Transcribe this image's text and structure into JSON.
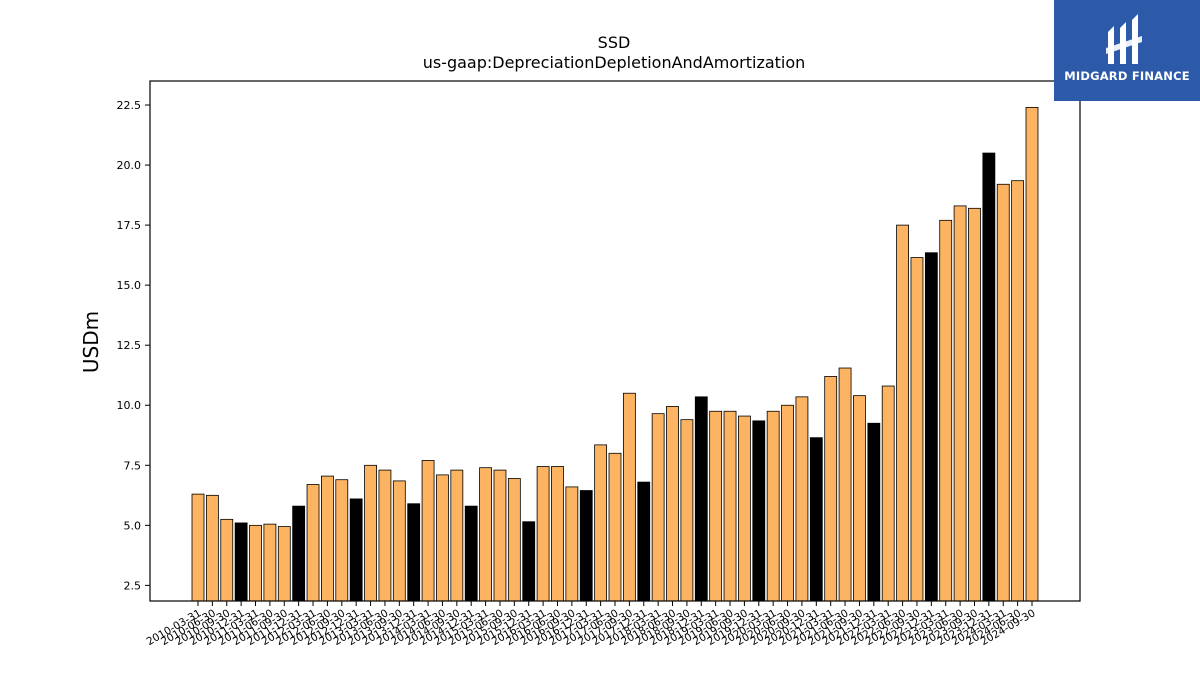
{
  "chart_data": {
    "type": "bar",
    "title": "SSD",
    "subtitle": "us-gaap:DepreciationDepletionAndAmortization",
    "xlabel": "",
    "ylabel": "USDm",
    "ylim": [
      1.85,
      23.5
    ],
    "yticks": [
      2.5,
      5.0,
      7.5,
      10.0,
      12.5,
      15.0,
      17.5,
      20.0,
      22.5
    ],
    "grid": false,
    "categories": [
      "2010-03-31",
      "2010-06-30",
      "2010-09-30",
      "2010-12-31",
      "2011-03-31",
      "2011-06-30",
      "2011-09-30",
      "2011-12-31",
      "2012-03-31",
      "2012-06-30",
      "2012-09-30",
      "2012-12-31",
      "2013-03-31",
      "2013-06-30",
      "2013-09-30",
      "2013-12-31",
      "2014-03-31",
      "2014-06-30",
      "2014-09-30",
      "2014-12-31",
      "2015-03-31",
      "2015-06-30",
      "2015-09-30",
      "2015-12-31",
      "2016-03-31",
      "2016-06-30",
      "2016-09-30",
      "2016-12-31",
      "2017-03-31",
      "2017-06-30",
      "2017-09-30",
      "2017-12-31",
      "2018-03-31",
      "2018-06-30",
      "2018-09-30",
      "2018-12-31",
      "2019-03-31",
      "2019-06-30",
      "2019-09-30",
      "2019-12-31",
      "2020-03-31",
      "2020-06-30",
      "2020-09-30",
      "2020-12-31",
      "2021-03-31",
      "2021-06-30",
      "2021-09-30",
      "2021-12-31",
      "2022-03-31",
      "2022-06-30",
      "2022-09-30",
      "2022-12-31",
      "2023-03-31",
      "2023-06-30",
      "2023-09-30",
      "2023-12-31",
      "2024-03-31",
      "2024-06-30",
      "2024-09-30"
    ],
    "values": [
      6.3,
      6.25,
      5.25,
      5.1,
      5.0,
      5.05,
      4.95,
      5.8,
      6.7,
      7.05,
      6.9,
      6.1,
      7.5,
      7.3,
      6.85,
      5.9,
      7.7,
      7.1,
      7.3,
      5.8,
      7.4,
      7.3,
      6.95,
      5.15,
      7.45,
      7.45,
      6.6,
      6.45,
      8.35,
      8.0,
      10.5,
      6.8,
      9.65,
      9.95,
      9.4,
      10.35,
      9.75,
      9.75,
      9.55,
      9.35,
      9.75,
      10.0,
      10.35,
      8.65,
      11.2,
      11.55,
      10.4,
      9.25,
      10.8,
      17.5,
      16.15,
      16.35,
      17.7,
      18.3,
      18.2,
      20.5,
      19.2,
      19.35,
      22.4
    ],
    "annual_marker": [
      false,
      false,
      false,
      true,
      false,
      false,
      false,
      true,
      false,
      false,
      false,
      true,
      false,
      false,
      false,
      true,
      false,
      false,
      false,
      true,
      false,
      false,
      false,
      true,
      false,
      false,
      false,
      true,
      false,
      false,
      false,
      true,
      false,
      false,
      false,
      true,
      false,
      false,
      false,
      true,
      false,
      false,
      false,
      true,
      false,
      false,
      false,
      true,
      false,
      false,
      false,
      true,
      false,
      false,
      false,
      true,
      false,
      false,
      false
    ],
    "colors": {
      "quarter": "#fdb462",
      "year_end": "#000000",
      "edge": "#000000"
    }
  },
  "logo": {
    "text": "MIDGARD FINANCE",
    "background": "#2c5aa8"
  }
}
